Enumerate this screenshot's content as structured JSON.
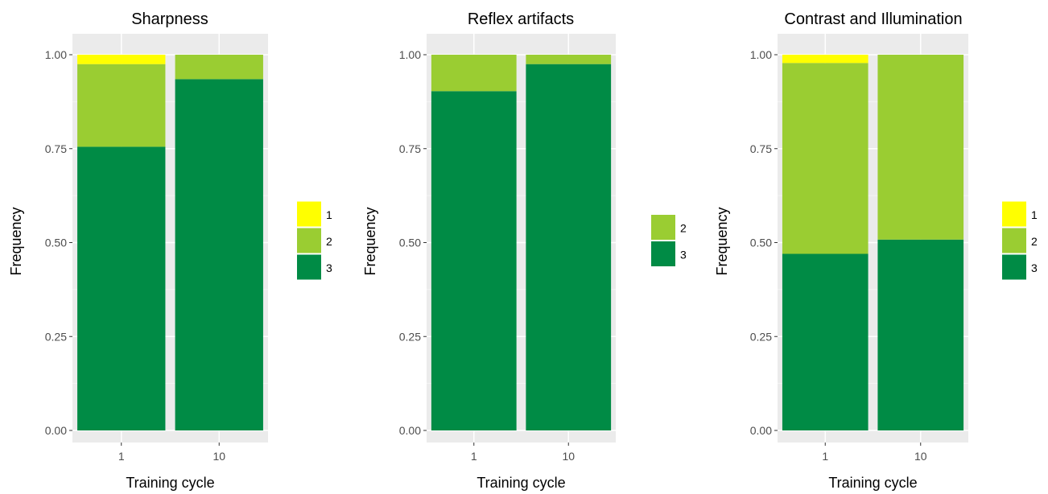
{
  "chart_data": [
    {
      "type": "bar",
      "stacked": true,
      "title": "Sharpness",
      "xlabel": "Training cycle",
      "ylabel": "Frequency",
      "categories": [
        "1",
        "10"
      ],
      "ylim": [
        0,
        1
      ],
      "yticks": [
        "0.00",
        "0.25",
        "0.50",
        "0.75",
        "1.00"
      ],
      "series": [
        {
          "name": "3",
          "color": "#008b45",
          "values": [
            0.755,
            0.935
          ]
        },
        {
          "name": "2",
          "color": "#9acd32",
          "values": [
            0.22,
            0.065
          ]
        },
        {
          "name": "1",
          "color": "#ffff00",
          "values": [
            0.025,
            0.0
          ]
        }
      ],
      "legend": [
        "1",
        "2",
        "3"
      ],
      "grid": true,
      "legend_position": "right"
    },
    {
      "type": "bar",
      "stacked": true,
      "title": "Reflex artifacts",
      "xlabel": "Training cycle",
      "ylabel": "Frequency",
      "categories": [
        "1",
        "10"
      ],
      "ylim": [
        0,
        1
      ],
      "yticks": [
        "0.00",
        "0.25",
        "0.50",
        "0.75",
        "1.00"
      ],
      "series": [
        {
          "name": "3",
          "color": "#008b45",
          "values": [
            0.903,
            0.975
          ]
        },
        {
          "name": "2",
          "color": "#9acd32",
          "values": [
            0.097,
            0.025
          ]
        }
      ],
      "legend": [
        "2",
        "3"
      ],
      "grid": true,
      "legend_position": "right"
    },
    {
      "type": "bar",
      "stacked": true,
      "title": "Contrast and Illumination",
      "xlabel": "Training cycle",
      "ylabel": "Frequency",
      "categories": [
        "1",
        "10"
      ],
      "ylim": [
        0,
        1
      ],
      "yticks": [
        "0.00",
        "0.25",
        "0.50",
        "0.75",
        "1.00"
      ],
      "series": [
        {
          "name": "3",
          "color": "#008b45",
          "values": [
            0.47,
            0.508
          ]
        },
        {
          "name": "2",
          "color": "#9acd32",
          "values": [
            0.508,
            0.492
          ]
        },
        {
          "name": "1",
          "color": "#ffff00",
          "values": [
            0.022,
            0.0
          ]
        }
      ],
      "legend": [
        "1",
        "2",
        "3"
      ],
      "grid": true,
      "legend_position": "right"
    }
  ]
}
